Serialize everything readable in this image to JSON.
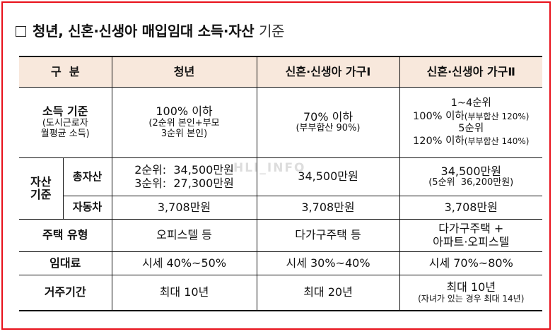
{
  "heading": {
    "checkbox_glyph": "□",
    "title_bold": "청년, 신혼·신생아 매입임대 소득·자산",
    "title_normal": "기준"
  },
  "watermark": "HLI_INFO",
  "table": {
    "headers": {
      "category": "구  분",
      "youth": "청년",
      "type1": "신혼·신생아 가구Ⅰ",
      "type2": "신혼·신생아 가구Ⅱ"
    },
    "income": {
      "label": "소득 기준",
      "label_note_1": "(도시근로자",
      "label_note_2": "월평균 소득)",
      "youth_main": "100% 이하",
      "youth_note_1": "(2순위 본인+부모",
      "youth_note_2": "3순위 본인)",
      "type1_main": "70% 이하",
      "type1_note": "(부부합산 90%)",
      "type2_line1": "1~4순위",
      "type2_line2_main": "100% 이하",
      "type2_line2_note": "(부부합산 120%)",
      "type2_line3": "5순위",
      "type2_line4_main": "120% 이하",
      "type2_line4_note": "(부부합산 140%)"
    },
    "assets": {
      "label_1": "자산",
      "label_2": "기준",
      "total": {
        "label": "총자산",
        "youth_line1": "2순위:  34,500만원",
        "youth_line2": "3순위:  27,300만원",
        "type1": "34,500만원",
        "type2_main": "34,500만원",
        "type2_note": "(5순위  36,200만원)"
      },
      "car": {
        "label": "자동차",
        "youth": "3,708만원",
        "type1": "3,708만원",
        "type2": "3,708만원"
      }
    },
    "housing": {
      "label": "주택 유형",
      "youth": "오피스텔 등",
      "type1": "다가구주택 등",
      "type2_line1": "다가구주택 +",
      "type2_line2": "아파트·오피스텔"
    },
    "rent": {
      "label": "임대료",
      "youth": "시세 40%~50%",
      "type1": "시세 30%~40%",
      "type2": "시세 70%~80%"
    },
    "period": {
      "label": "거주기간",
      "youth": "최대 10년",
      "type1": "최대 20년",
      "type2_line1": "최대 10년",
      "type2_line2": "(자녀가 있는 경우 최대 14년)"
    }
  }
}
